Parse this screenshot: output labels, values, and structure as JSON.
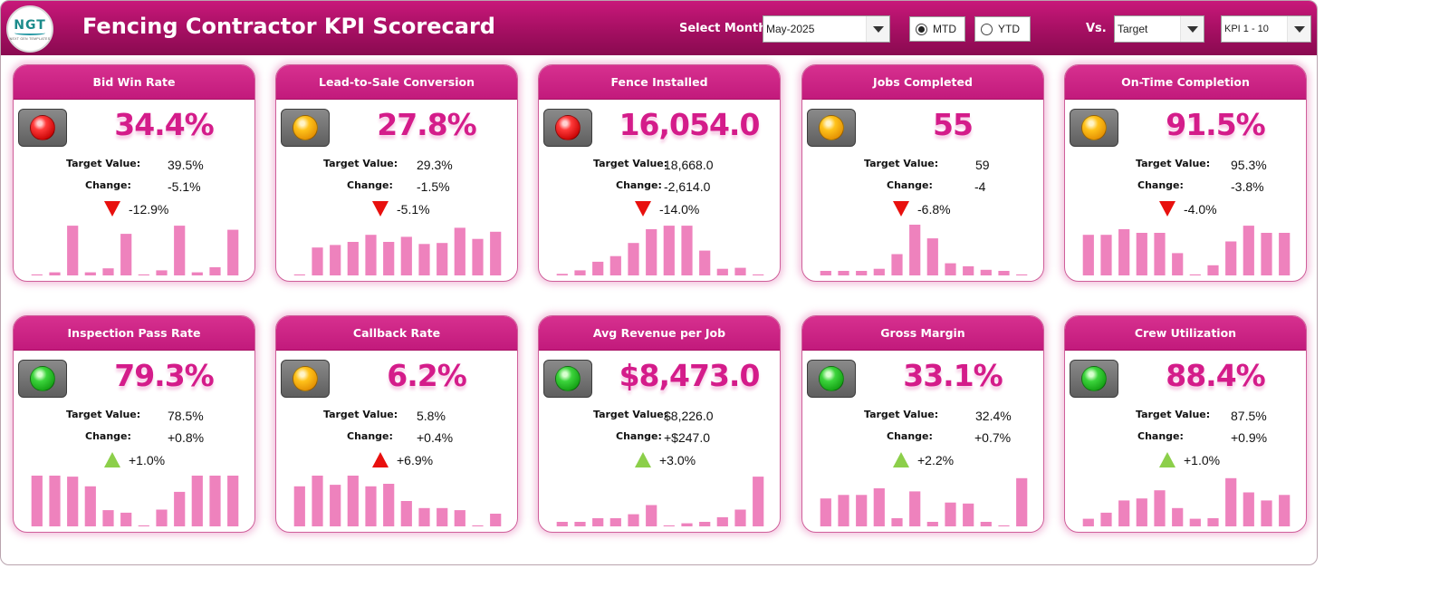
{
  "header": {
    "title": "Fencing Contractor KPI Scorecard",
    "logo_text": "NGT",
    "logo_subtext": "NEXT GEN TEMPLATES",
    "select_month_label": "Select Month",
    "month_value": "May-2025",
    "radio_mtd": "MTD",
    "radio_ytd": "YTD",
    "selected_period": "MTD",
    "vs_label": "Vs.",
    "vs_value": "Target",
    "kpi_range_value": "KPI 1 - 10"
  },
  "labels": {
    "target": "Target Value:",
    "change": "Change:"
  },
  "colors": {
    "header": "#a50f62",
    "card_header": "#c21a7c",
    "value_text": "#d41c8a",
    "bar": "#ee82bd",
    "down_arrow": "#e8100e",
    "up_arrow": "#8ccf4a"
  },
  "kpis": [
    {
      "title": "Bid Win Rate",
      "status": "red",
      "value": "34.4%",
      "target": "39.5%",
      "change": "-5.1%",
      "pct": "-12.9%",
      "direction": "down",
      "bars": [
        0.02,
        0.06,
        0.98,
        0.06,
        0.14,
        0.82,
        0.02,
        0.1,
        0.98,
        0.06,
        0.16,
        0.9
      ]
    },
    {
      "title": "Lead-to-Sale Conversion",
      "status": "amber",
      "value": "27.8%",
      "target": "29.3%",
      "change": "-1.5%",
      "pct": "-5.1%",
      "direction": "down",
      "bars": [
        0.02,
        0.55,
        0.6,
        0.66,
        0.8,
        0.66,
        0.76,
        0.62,
        0.64,
        0.94,
        0.72,
        0.86
      ]
    },
    {
      "title": "Fence Installed",
      "status": "red",
      "value": "16,054.0",
      "target": "18,668.0",
      "change": "-2,614.0",
      "pct": "-14.0%",
      "direction": "down",
      "bars": [
        0.03,
        0.1,
        0.27,
        0.38,
        0.64,
        0.91,
        0.98,
        0.98,
        0.49,
        0.13,
        0.15,
        0.02
      ]
    },
    {
      "title": "Jobs Completed",
      "status": "amber",
      "value": "55",
      "target": "59",
      "change": "-4",
      "pct": "-6.8%",
      "direction": "down",
      "bars": [
        0.09,
        0.09,
        0.09,
        0.13,
        0.42,
        1.0,
        0.73,
        0.24,
        0.18,
        0.11,
        0.09,
        0.02
      ]
    },
    {
      "title": "On-Time Completion",
      "status": "amber",
      "value": "91.5%",
      "target": "95.3%",
      "change": "-3.8%",
      "pct": "-4.0%",
      "direction": "down",
      "bars": [
        0.8,
        0.8,
        0.91,
        0.84,
        0.84,
        0.44,
        0.02,
        0.2,
        0.67,
        0.98,
        0.84,
        0.84
      ]
    },
    {
      "title": "Inspection Pass Rate",
      "status": "green",
      "value": "79.3%",
      "target": "78.5%",
      "change": "+0.8%",
      "pct": "+1.0%",
      "direction": "up",
      "bars": [
        1.0,
        1.0,
        0.98,
        0.79,
        0.32,
        0.27,
        0.02,
        0.33,
        0.68,
        1.0,
        1.0,
        1.0
      ]
    },
    {
      "title": "Callback Rate",
      "status": "amber",
      "value": "6.2%",
      "target": "5.8%",
      "change": "+0.4%",
      "pct": "+6.9%",
      "direction": "up-bad",
      "bars": [
        0.79,
        1.0,
        0.82,
        1.0,
        0.79,
        0.84,
        0.5,
        0.36,
        0.36,
        0.32,
        0.02,
        0.25
      ]
    },
    {
      "title": "Avg Revenue per Job",
      "status": "green",
      "value": "$8,473.0",
      "target": "$8,226.0",
      "change": "+$247.0",
      "pct": "+3.0%",
      "direction": "up",
      "bars": [
        0.09,
        0.09,
        0.16,
        0.16,
        0.24,
        0.42,
        0.02,
        0.06,
        0.09,
        0.18,
        0.33,
        0.98
      ]
    },
    {
      "title": "Gross Margin",
      "status": "green",
      "value": "33.1%",
      "target": "32.4%",
      "change": "+0.7%",
      "pct": "+2.2%",
      "direction": "up",
      "bars": [
        0.55,
        0.62,
        0.62,
        0.75,
        0.16,
        0.69,
        0.09,
        0.47,
        0.45,
        0.09,
        0.02,
        0.95
      ]
    },
    {
      "title": "Crew Utilization",
      "status": "green",
      "value": "88.4%",
      "target": "87.5%",
      "change": "+0.9%",
      "pct": "+1.0%",
      "direction": "up",
      "bars": [
        0.15,
        0.27,
        0.51,
        0.55,
        0.71,
        0.36,
        0.15,
        0.16,
        0.95,
        0.67,
        0.51,
        0.62
      ]
    }
  ]
}
